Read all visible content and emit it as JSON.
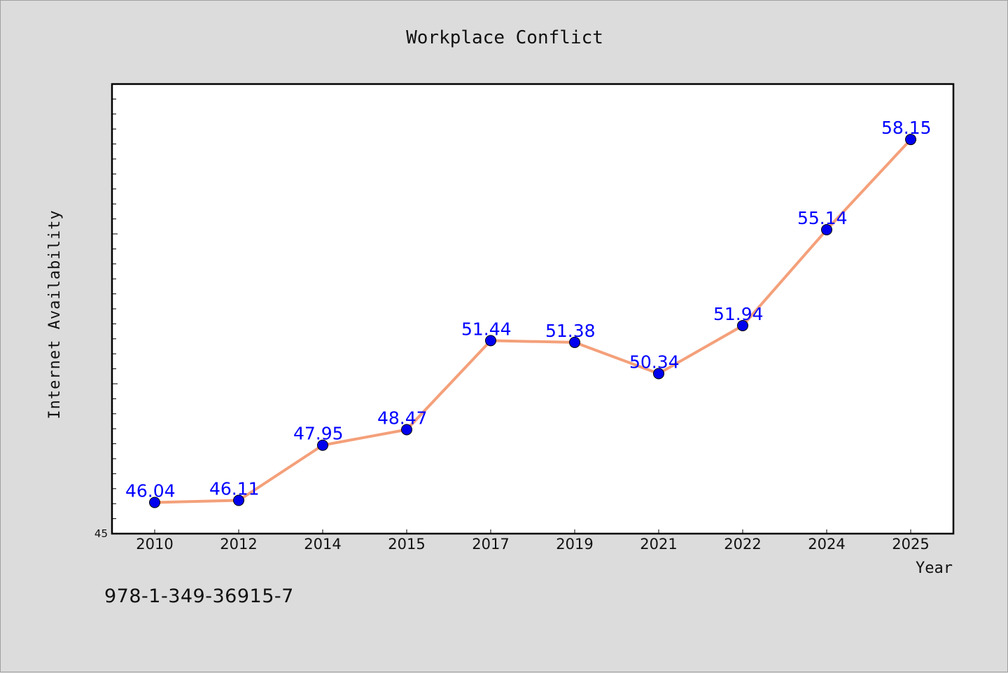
{
  "chart_data": {
    "type": "line",
    "title": "Workplace Conflict",
    "xlabel": "Year",
    "ylabel": "Internet Availability",
    "categories": [
      "2010",
      "2012",
      "2014",
      "2015",
      "2017",
      "2019",
      "2021",
      "2022",
      "2024",
      "2025"
    ],
    "series": [
      {
        "values": [
          46.04,
          46.11,
          47.95,
          48.47,
          51.44,
          51.38,
          50.34,
          51.94,
          55.14,
          58.15
        ],
        "labels": [
          "46.04",
          "46.11",
          "47.95",
          "48.47",
          "51.44",
          "51.38",
          "50.34",
          "51.94",
          "55.14",
          "58.15"
        ]
      }
    ],
    "ylim": [
      45,
      60
    ],
    "y_tick_labels": [
      "45"
    ],
    "grid": false,
    "line_color": "#f4a07a",
    "marker_color": "#0000ee",
    "label_color": "#0000ff"
  },
  "footer": {
    "isbn": "978-1-349-36915-7"
  }
}
